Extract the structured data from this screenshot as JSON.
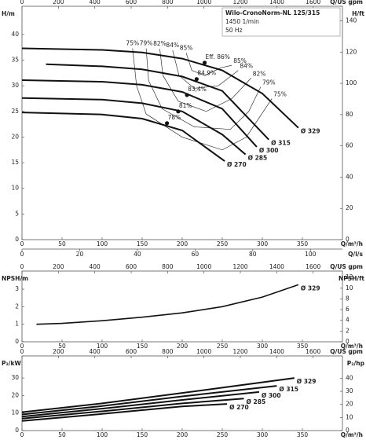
{
  "chart_data": [
    {
      "type": "line",
      "annotations": [
        "Wilo-CronoNorm-NL 125/315",
        "1450 1/min",
        "50 Hz"
      ],
      "ylabel": "H/m",
      "y2label": "H/ft",
      "xlabel": "Q/m³/h",
      "x2label": "Q/US gpm",
      "x3label": "Q/l/s",
      "xlim": [
        0,
        400
      ],
      "xticks": [
        0,
        50,
        100,
        150,
        200,
        250,
        300,
        350
      ],
      "x2lim": [
        0,
        1761
      ],
      "x2ticks": [
        0,
        200,
        400,
        600,
        800,
        1000,
        1200,
        1400,
        1600
      ],
      "x3lim": [
        0,
        111.1
      ],
      "x3ticks": [
        0,
        20,
        40,
        60,
        80,
        100
      ],
      "ylim": [
        0,
        45.5
      ],
      "yticks": [
        0,
        5,
        10,
        15,
        20,
        25,
        30,
        35,
        40
      ],
      "y2lim": [
        0,
        149.3
      ],
      "y2ticks": [
        0,
        20,
        40,
        60,
        80,
        100,
        120,
        140
      ],
      "series": [
        {
          "name": "Ø 329",
          "color": "#111111",
          "x": [
            0,
            100,
            150,
            200,
            250,
            300,
            345
          ],
          "values": [
            37.3,
            37.0,
            36.5,
            35.3,
            33.0,
            28.5,
            21.8
          ]
        },
        {
          "name": "Ø 315",
          "color": "#111111",
          "x": [
            30,
            100,
            150,
            200,
            250,
            308
          ],
          "values": [
            34.2,
            33.8,
            33.2,
            31.8,
            29.0,
            19.5
          ]
        },
        {
          "name": "Ø 300",
          "color": "#111111",
          "x": [
            0,
            100,
            150,
            200,
            250,
            293
          ],
          "values": [
            31.1,
            30.8,
            30.2,
            28.8,
            25.5,
            18.1
          ]
        },
        {
          "name": "Ø 285",
          "color": "#111111",
          "x": [
            0,
            100,
            150,
            200,
            250,
            279
          ],
          "values": [
            27.6,
            27.3,
            26.6,
            25.0,
            20.5,
            16.6
          ]
        },
        {
          "name": "Ø 270",
          "color": "#111111",
          "x": [
            0,
            100,
            150,
            200,
            253
          ],
          "values": [
            24.8,
            24.4,
            23.6,
            21.3,
            15.3
          ]
        }
      ],
      "iso_efficiency": [
        {
          "name": "75%",
          "x": [
            138,
            143,
            155,
            200,
            250,
            280,
            312
          ],
          "values": [
            37.3,
            30,
            24.5,
            20,
            17.5,
            20,
            27.5
          ]
        },
        {
          "name": "79%",
          "x": [
            155,
            158,
            175,
            215,
            260,
            283,
            298
          ],
          "values": [
            37.3,
            31,
            25.5,
            22,
            21.5,
            25,
            29.8
          ]
        },
        {
          "name": "82%",
          "x": [
            172,
            176,
            195,
            230,
            262,
            286
          ],
          "values": [
            37.2,
            32,
            27,
            25,
            27.5,
            31.5
          ]
        },
        {
          "name": "84%",
          "x": [
            188,
            196,
            215,
            245,
            270
          ],
          "values": [
            36.9,
            32,
            29.5,
            30,
            33
          ]
        },
        {
          "name": "85%",
          "x": [
            205,
            212,
            228,
            248,
            262
          ],
          "values": [
            36.4,
            33,
            32,
            33.5,
            34
          ]
        }
      ],
      "bep": [
        {
          "q": 228,
          "h": 34.5,
          "label": "Eff. 86%"
        },
        {
          "q": 218,
          "h": 31.3,
          "label": "84,9%"
        },
        {
          "q": 206,
          "h": 28.2,
          "label": "83,4%"
        },
        {
          "q": 195,
          "h": 25.0,
          "label": "81%"
        },
        {
          "q": 181,
          "h": 22.7,
          "label": "78%"
        }
      ]
    },
    {
      "type": "line",
      "ylabel": "NPSH/m",
      "y2label": "NPSH/ft",
      "xlabel": "Q/m³/h",
      "x2label": "Q/US gpm",
      "xlim": [
        0,
        400
      ],
      "xticks": [
        0,
        50,
        100,
        150,
        200,
        250,
        300,
        350
      ],
      "x2lim": [
        0,
        1761
      ],
      "x2ticks": [
        0,
        200,
        400,
        600,
        800,
        1000,
        1200,
        1400,
        1600
      ],
      "ylim": [
        0,
        4.03
      ],
      "yticks": [
        0,
        1,
        2,
        3
      ],
      "y2lim": [
        0,
        13.2
      ],
      "y2ticks": [
        0,
        2,
        4,
        6,
        8,
        10,
        12
      ],
      "series": [
        {
          "name": "Ø 329",
          "color": "#111111",
          "x": [
            18,
            50,
            100,
            150,
            200,
            250,
            300,
            345
          ],
          "values": [
            1.0,
            1.05,
            1.2,
            1.4,
            1.65,
            2.0,
            2.55,
            3.25
          ]
        }
      ]
    },
    {
      "type": "line",
      "ylabel": "P₂/kW",
      "y2label": "P₂/hp",
      "xlabel": "Q/m³/h",
      "x2label": "Q/US gpm",
      "xlim": [
        0,
        400
      ],
      "xticks": [
        0,
        50,
        100,
        150,
        200,
        250,
        300,
        350
      ],
      "x2lim": [
        0,
        1761
      ],
      "x2ticks": [
        0,
        200,
        400,
        600,
        800,
        1000,
        1200,
        1400,
        1600
      ],
      "ylim": [
        0,
        42.6
      ],
      "yticks": [
        0,
        10,
        20,
        30
      ],
      "y2lim": [
        0,
        57.1
      ],
      "y2ticks": [
        0,
        10,
        20,
        30,
        40
      ],
      "series": [
        {
          "name": "Ø 329",
          "color": "#111111",
          "x": [
            0,
            100,
            200,
            250,
            340
          ],
          "values": [
            10.5,
            15.5,
            21.5,
            24.5,
            30
          ]
        },
        {
          "name": "Ø 315",
          "color": "#111111",
          "x": [
            0,
            100,
            200,
            318
          ],
          "values": [
            9.2,
            14,
            19.5,
            25.5
          ]
        },
        {
          "name": "Ø 300",
          "color": "#111111",
          "x": [
            0,
            100,
            200,
            296
          ],
          "values": [
            8,
            12.5,
            17.5,
            22
          ]
        },
        {
          "name": "Ø 285",
          "color": "#111111",
          "x": [
            0,
            100,
            200,
            277
          ],
          "values": [
            6.8,
            11,
            15.5,
            18.3
          ]
        },
        {
          "name": "Ø 270",
          "color": "#111111",
          "x": [
            0,
            100,
            200,
            256
          ],
          "values": [
            5.5,
            9.5,
            13.8,
            15.2
          ]
        }
      ]
    }
  ]
}
